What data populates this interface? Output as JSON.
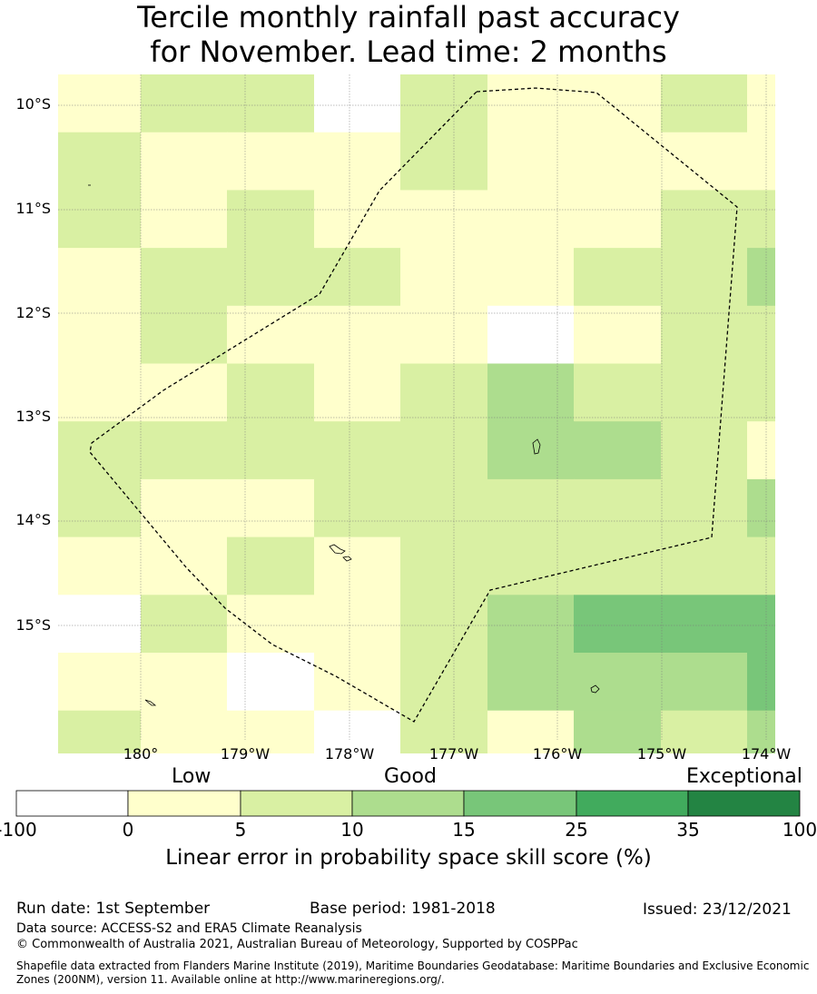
{
  "title": {
    "line1": "Tercile monthly rainfall past accuracy",
    "line2": "for November. Lead time: 2 months"
  },
  "map": {
    "lat_labels": [
      "10°S",
      "11°S",
      "12°S",
      "13°S",
      "14°S",
      "15°S"
    ],
    "lon_labels": [
      "180°",
      "179°W",
      "178°W",
      "177°W",
      "176°W",
      "175°W",
      "174°W"
    ],
    "grid_cell_classes": [
      [
        1,
        2,
        2,
        0,
        2,
        1,
        1,
        2
      ],
      [
        2,
        1,
        1,
        1,
        2,
        1,
        1,
        1
      ],
      [
        2,
        1,
        2,
        1,
        1,
        1,
        1,
        2
      ],
      [
        1,
        2,
        2,
        2,
        1,
        1,
        2,
        2
      ],
      [
        1,
        2,
        1,
        1,
        1,
        0,
        1,
        2
      ],
      [
        1,
        1,
        2,
        1,
        2,
        3,
        2,
        2
      ],
      [
        2,
        2,
        2,
        2,
        2,
        3,
        3,
        2
      ],
      [
        2,
        1,
        1,
        2,
        2,
        2,
        2,
        2
      ],
      [
        1,
        1,
        2,
        1,
        2,
        2,
        2,
        2
      ],
      [
        0,
        2,
        1,
        1,
        2,
        3,
        4,
        4
      ],
      [
        1,
        1,
        0,
        1,
        2,
        3,
        3,
        3
      ],
      [
        2,
        1,
        1,
        0,
        2,
        1,
        3,
        2
      ]
    ],
    "last_col_classes": [
      1,
      1,
      2,
      3,
      2,
      2,
      1,
      3,
      2,
      4,
      4,
      3
    ]
  },
  "legend": {
    "words": [
      "Low",
      "Good",
      "Exceptional"
    ],
    "ticks": [
      "-100",
      "0",
      "5",
      "10",
      "15",
      "25",
      "35",
      "100"
    ],
    "colors": [
      "#ffffff",
      "#ffffcc",
      "#d9f0a3",
      "#addd8e",
      "#78c679",
      "#41ab5d",
      "#238443"
    ],
    "title": "Linear error in probability space skill score (%)"
  },
  "footer": {
    "run_date": "Run date: 1st September",
    "base_period": "Base period: 1981-2018",
    "issued": "Issued: 23/12/2021",
    "data_source": "Data source: ACCESS-S2 and ERA5 Climate Reanalysis",
    "copyright": "© Commonwealth of Australia 2021, Australian Bureau of Meteorology, Supported by COSPPac",
    "shapefile": "Shapefile data extracted from Flanders Marine Institute (2019), Maritime Boundaries Geodatabase: Maritime Boundaries and Exclusive Economic Zones (200NM), version 11. Available online at http://www.marineregions.org/."
  }
}
